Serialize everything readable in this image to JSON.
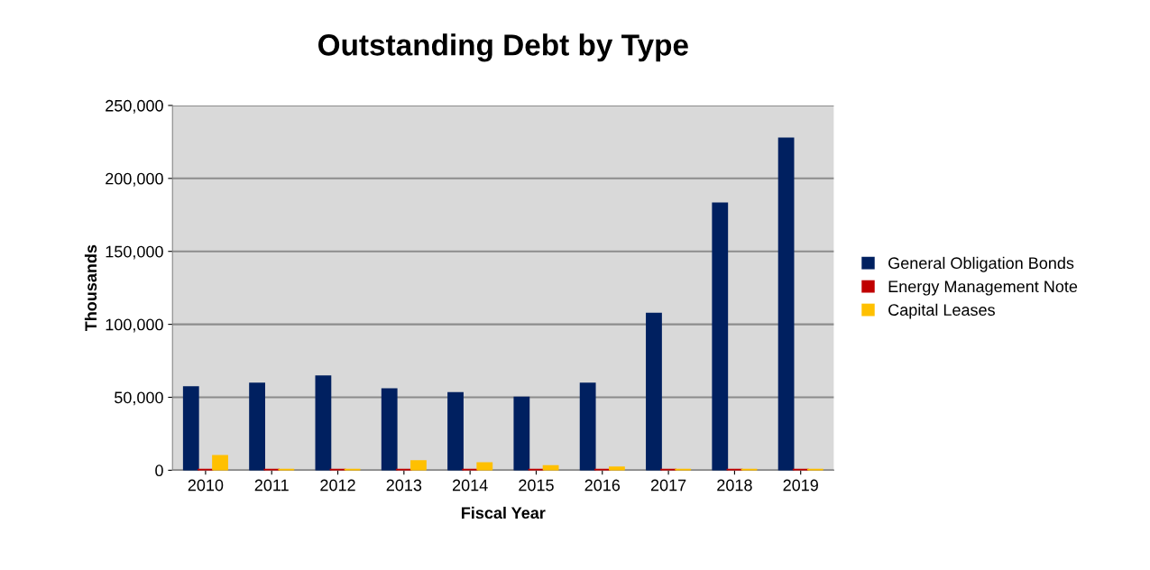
{
  "chart_data": {
    "type": "bar",
    "title": "Outstanding Debt by Type",
    "xlabel": "Fiscal Year",
    "ylabel": "Thousands",
    "categories": [
      "2010",
      "2011",
      "2012",
      "2013",
      "2014",
      "2015",
      "2016",
      "2017",
      "2018",
      "2019"
    ],
    "series": [
      {
        "name": "General Obligation Bonds",
        "color": "#002060",
        "values": [
          57000,
          59500,
          64500,
          55700,
          53000,
          50000,
          59500,
          107500,
          183000,
          227500
        ]
      },
      {
        "name": "Energy Management Note",
        "color": "#c00000",
        "values": [
          500,
          500,
          500,
          500,
          500,
          500,
          500,
          500,
          500,
          500
        ]
      },
      {
        "name": "Capital Leases",
        "color": "#ffc000",
        "values": [
          10000,
          500,
          500,
          6300,
          5000,
          3000,
          2000,
          500,
          500,
          500
        ]
      }
    ],
    "ylim": [
      0,
      250000
    ],
    "yticks": [
      {
        "value": 0,
        "label": "0"
      },
      {
        "value": 50000,
        "label": "50,000"
      },
      {
        "value": 100000,
        "label": "100,000"
      },
      {
        "value": 150000,
        "label": "150,000"
      },
      {
        "value": 200000,
        "label": "200,000"
      },
      {
        "value": 250000,
        "label": "250,000"
      }
    ],
    "grid": "y",
    "legend": "right"
  }
}
